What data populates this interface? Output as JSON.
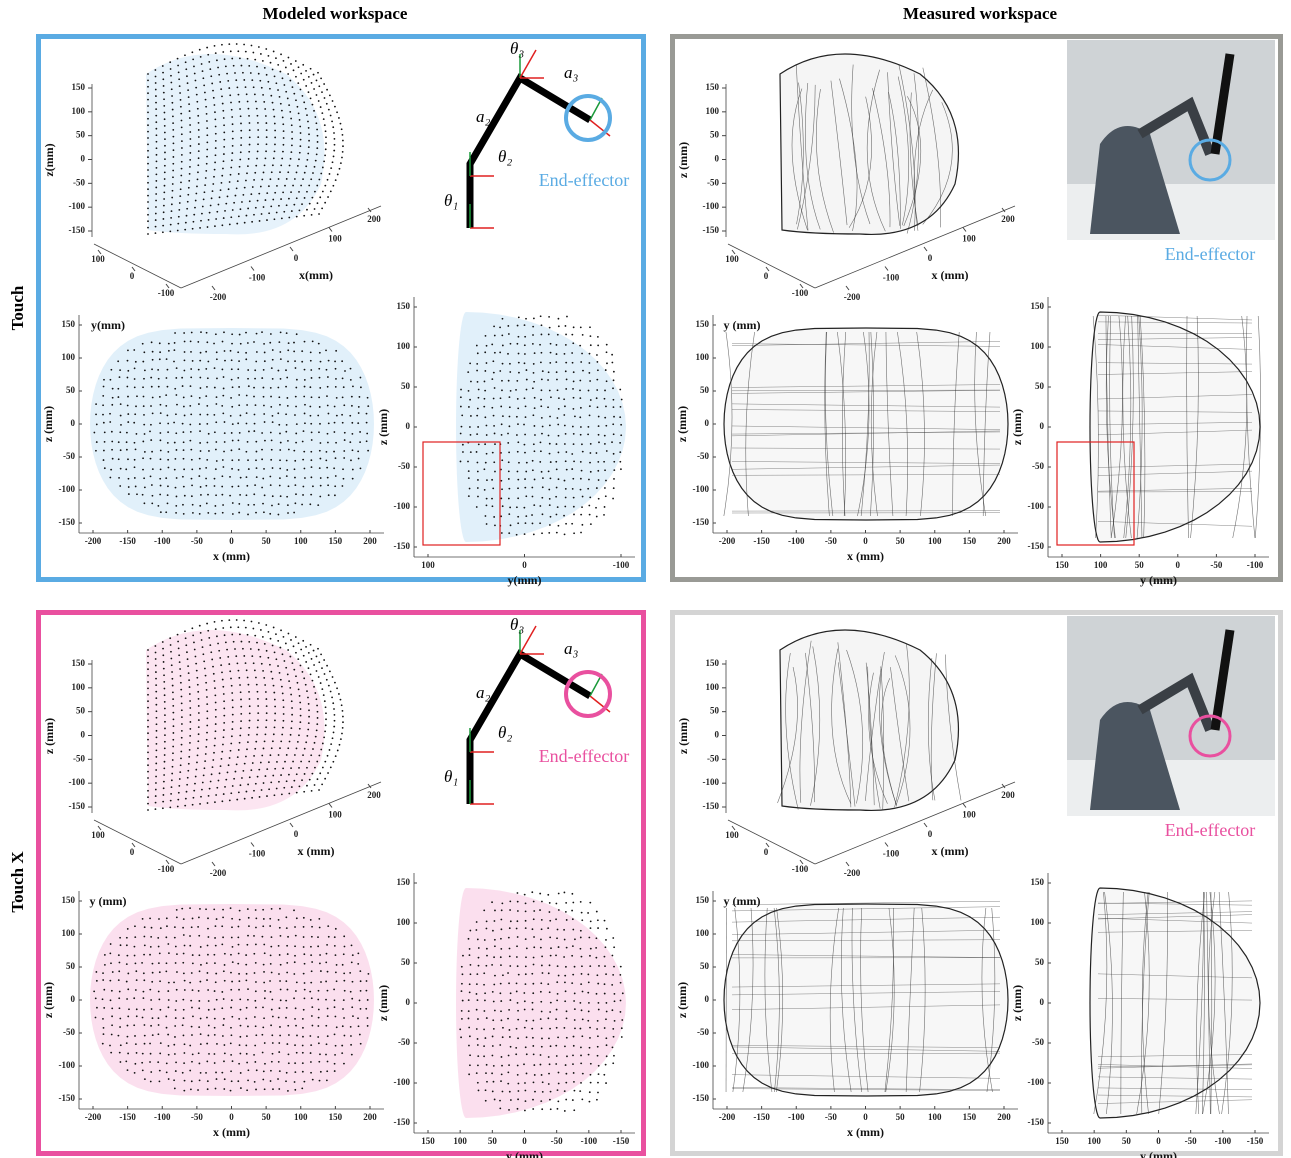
{
  "column_titles": [
    "Modeled workspace",
    "Measured workspace"
  ],
  "row_labels": [
    "Touch",
    "Touch X"
  ],
  "panels": [
    {
      "kind": "modeled",
      "color": "#5aabe3",
      "plot3d": {
        "z_label": "z(mm)",
        "x_label": "x(mm)",
        "y_label": "y(mm)",
        "z_ticks": [
          150,
          100,
          50,
          0,
          -50,
          -100,
          -150
        ],
        "x_ticks": [
          -200,
          -100,
          0,
          100,
          200
        ],
        "y_ticks": [
          100,
          0,
          -100
        ]
      },
      "xz": {
        "x_label": "x (mm)",
        "z_label": "z (mm)",
        "x_ticks": [
          -200,
          -150,
          -100,
          -50,
          0,
          50,
          100,
          150,
          200
        ],
        "z_ticks": [
          150,
          100,
          50,
          0,
          -50,
          -100,
          -150
        ]
      },
      "yz": {
        "y_label": "y(mm)",
        "z_label": "z (mm)",
        "y_ticks": [
          100,
          0,
          -100
        ],
        "z_ticks": [
          150,
          100,
          50,
          0,
          -50,
          -100,
          -150
        ]
      },
      "diagram": {
        "labels": [
          "θ₃",
          "a₃",
          "a₂",
          "θ₂",
          "θ₁"
        ]
      },
      "annotation": "End-effector"
    },
    {
      "kind": "measured",
      "color": "#999a95",
      "plot3d": {
        "z_label": "z (mm)",
        "x_label": "x (mm)",
        "y_label": "y (mm)",
        "z_ticks": [
          150,
          100,
          50,
          0,
          -50,
          -100,
          -150
        ],
        "x_ticks": [
          -200,
          -100,
          0,
          100,
          200
        ],
        "y_ticks": [
          100,
          0,
          -100
        ]
      },
      "xz": {
        "x_label": "x (mm)",
        "z_label": "z (mm)",
        "x_ticks": [
          -200,
          -150,
          -100,
          -50,
          0,
          50,
          100,
          150,
          200
        ],
        "z_ticks": [
          150,
          100,
          50,
          0,
          -50,
          -100,
          -150
        ]
      },
      "yz": {
        "y_label": "y (mm)",
        "z_label": "z (mm)",
        "y_ticks": [
          150,
          100,
          50,
          0,
          -50,
          -100
        ],
        "z_ticks": [
          150,
          100,
          50,
          0,
          -50,
          -100,
          -150
        ]
      },
      "annotation": "End-effector",
      "accent": "#5aabe3"
    },
    {
      "kind": "modeled",
      "color": "#e9509f",
      "plot3d": {
        "z_label": "z (mm)",
        "x_label": "x (mm)",
        "y_label": "y (mm)",
        "z_ticks": [
          150,
          100,
          50,
          0,
          -50,
          -100,
          -150
        ],
        "x_ticks": [
          -200,
          -100,
          0,
          100,
          200
        ],
        "y_ticks": [
          100,
          0,
          -100
        ]
      },
      "xz": {
        "x_label": "x (mm)",
        "z_label": "z (mm)",
        "x_ticks": [
          -200,
          -150,
          -100,
          -50,
          0,
          50,
          100,
          150,
          200
        ],
        "z_ticks": [
          150,
          100,
          50,
          0,
          -50,
          -100,
          -150
        ]
      },
      "yz": {
        "y_label": "y (mm)",
        "z_label": "z (mm)",
        "y_ticks": [
          150,
          100,
          50,
          0,
          -50,
          -100,
          -150
        ],
        "z_ticks": [
          150,
          100,
          50,
          0,
          -50,
          -100,
          -150
        ]
      },
      "diagram": {
        "labels": [
          "θ₃",
          "a₃",
          "a₂",
          "θ₂",
          "θ₁"
        ]
      },
      "annotation": "End-effector"
    },
    {
      "kind": "measured",
      "color": "#d4d4d4",
      "plot3d": {
        "z_label": "z (mm)",
        "x_label": "x (mm)",
        "y_label": "y (mm)",
        "z_ticks": [
          150,
          100,
          50,
          0,
          -50,
          -100,
          -150
        ],
        "x_ticks": [
          -200,
          -100,
          0,
          100,
          200
        ],
        "y_ticks": [
          100,
          0,
          -100
        ]
      },
      "xz": {
        "x_label": "x (mm)",
        "z_label": "z (mm)",
        "x_ticks": [
          -200,
          -150,
          -100,
          -50,
          0,
          50,
          100,
          150,
          200
        ],
        "z_ticks": [
          150,
          100,
          50,
          0,
          -50,
          -100,
          -150
        ]
      },
      "yz": {
        "y_label": "y (mm)",
        "z_label": "z (mm)",
        "y_ticks": [
          150,
          100,
          50,
          0,
          -50,
          -100,
          -150
        ],
        "z_ticks": [
          150,
          100,
          50,
          0,
          -50,
          -100,
          -150
        ]
      },
      "annotation": "End-effector",
      "accent": "#e9509f"
    }
  ]
}
